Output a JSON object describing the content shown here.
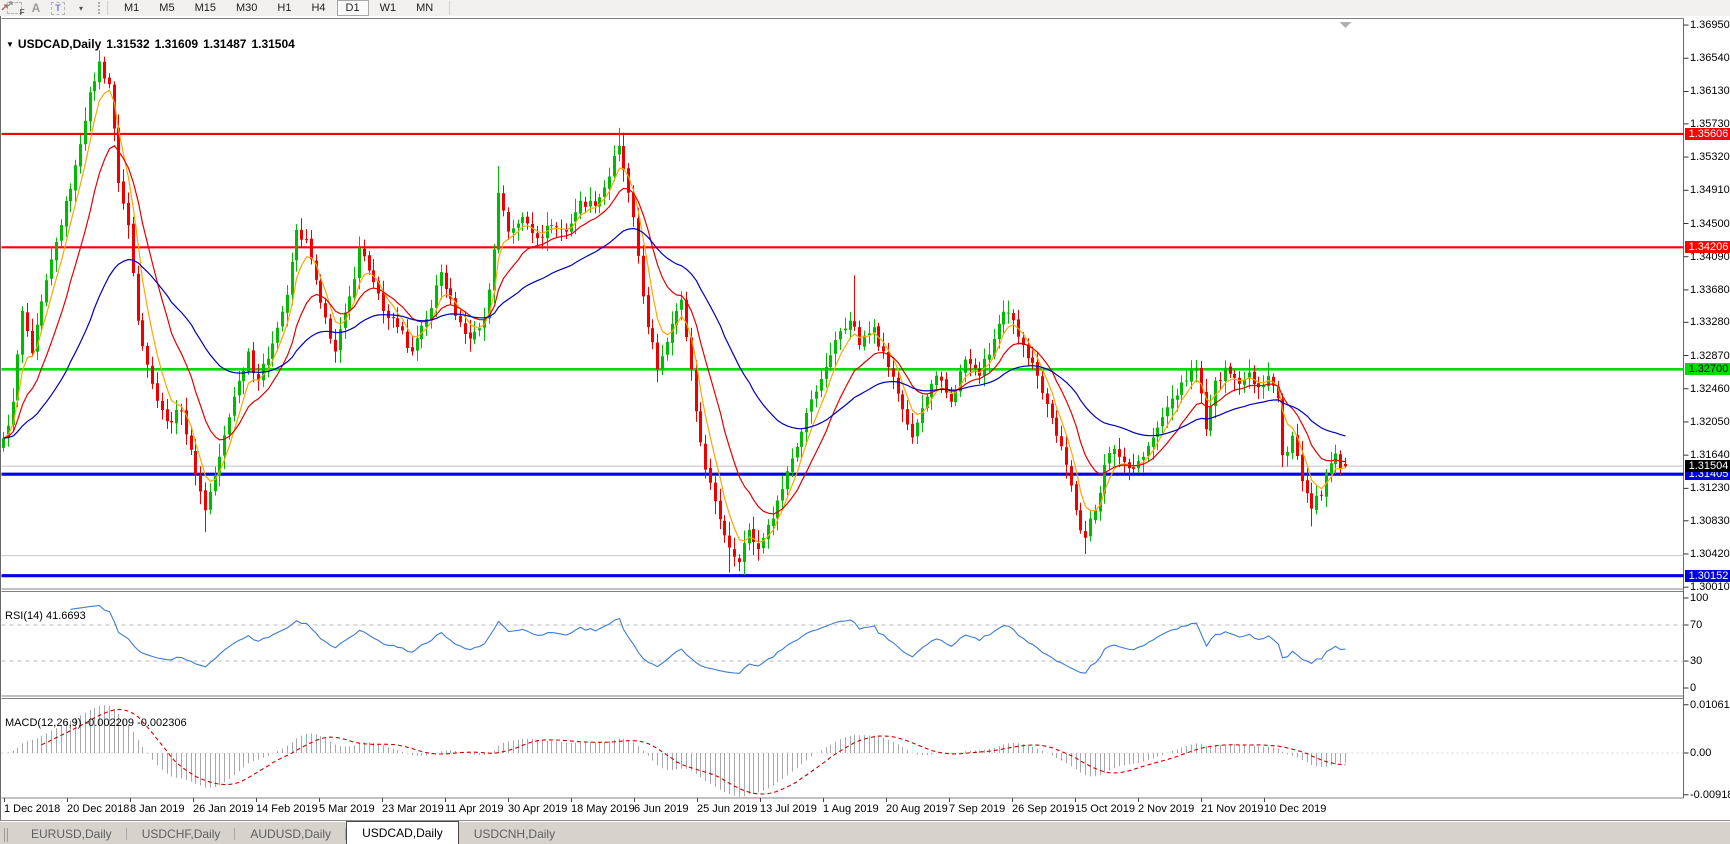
{
  "toolbar": {
    "tools": [
      {
        "name": "fibonacci-tool",
        "label": "F"
      },
      {
        "name": "text-label-tool",
        "label": "A"
      },
      {
        "name": "text-box-tool",
        "label": "T"
      },
      {
        "name": "arrows-tool",
        "label": "▾"
      }
    ],
    "timeframes": [
      "M1",
      "M5",
      "M15",
      "M30",
      "H1",
      "H4",
      "D1",
      "W1",
      "MN"
    ],
    "active_timeframe": "D1"
  },
  "title": {
    "symbol": "USDCAD,Daily",
    "open": "1.31532",
    "high": "1.31609",
    "low": "1.31487",
    "close": "1.31504"
  },
  "price_axis": {
    "min": 1.3,
    "max": 1.37,
    "ticks": [
      "1.36950",
      "1.36540",
      "1.36130",
      "1.35730",
      "1.35320",
      "1.34910",
      "1.34500",
      "1.34090",
      "1.33680",
      "1.33280",
      "1.32870",
      "1.32460",
      "1.32050",
      "1.31640",
      "1.31230",
      "1.30830",
      "1.30420",
      "1.30010"
    ]
  },
  "hlines": [
    {
      "name": "resistance-1",
      "price": 1.35606,
      "label": "1.35606",
      "color": "#ff0000",
      "width": 2.2,
      "label_bg": "#ff0000",
      "label_fg": "#ffffff"
    },
    {
      "name": "resistance-2",
      "price": 1.34206,
      "label": "1.34206",
      "color": "#ff0000",
      "width": 2.2,
      "label_bg": "#ff0000",
      "label_fg": "#ffffff"
    },
    {
      "name": "pivot-green",
      "price": 1.327,
      "label": "1.32700",
      "color": "#00dd00",
      "width": 2.6,
      "label_bg": "#00dd00",
      "label_fg": "#000000"
    },
    {
      "name": "support-1",
      "price": 1.31405,
      "label": "1.31405",
      "color": "#0000e0",
      "width": 3.2,
      "label_bg": "#0000e0",
      "label_fg": "#ffffff"
    },
    {
      "name": "support-2",
      "price": 1.30152,
      "label": "1.30152",
      "color": "#0000e0",
      "width": 3.2,
      "label_bg": "#0000e0",
      "label_fg": "#ffffff"
    },
    {
      "name": "gray-level",
      "price": 1.304,
      "label": "",
      "color": "#c8c8c8",
      "width": 1,
      "label_bg": "",
      "label_fg": ""
    }
  ],
  "bid_line": {
    "price": 1.31504,
    "label": "1.31504",
    "line_color": "#c0c0c0",
    "label_bg": "#000000",
    "label_fg": "#ffffff"
  },
  "chart_data": {
    "type": "candlestick",
    "symbol": "USDCAD",
    "period": "Daily",
    "n_candles": 280,
    "up_color": "#00bb00",
    "down_color": "#ee0000",
    "anchors_index_close": [
      [
        0,
        1.3185
      ],
      [
        2,
        1.323
      ],
      [
        4,
        1.3342
      ],
      [
        6,
        1.329
      ],
      [
        9,
        1.338
      ],
      [
        12,
        1.3448
      ],
      [
        15,
        1.3522
      ],
      [
        18,
        1.3612
      ],
      [
        20,
        1.365
      ],
      [
        22,
        1.3622
      ],
      [
        24,
        1.35
      ],
      [
        26,
        1.3448
      ],
      [
        28,
        1.333
      ],
      [
        31,
        1.3252
      ],
      [
        34,
        1.3206
      ],
      [
        37,
        1.3218
      ],
      [
        40,
        1.314
      ],
      [
        42,
        1.3096
      ],
      [
        45,
        1.3162
      ],
      [
        48,
        1.3236
      ],
      [
        51,
        1.3292
      ],
      [
        53,
        1.3256
      ],
      [
        56,
        1.3302
      ],
      [
        59,
        1.3362
      ],
      [
        61,
        1.3442
      ],
      [
        63,
        1.343
      ],
      [
        66,
        1.3352
      ],
      [
        69,
        1.3292
      ],
      [
        72,
        1.336
      ],
      [
        74,
        1.342
      ],
      [
        76,
        1.3392
      ],
      [
        79,
        1.3342
      ],
      [
        82,
        1.3322
      ],
      [
        85,
        1.3292
      ],
      [
        88,
        1.3332
      ],
      [
        91,
        1.339
      ],
      [
        94,
        1.3336
      ],
      [
        97,
        1.3308
      ],
      [
        100,
        1.3332
      ],
      [
        102,
        1.3418
      ],
      [
        103,
        1.3488
      ],
      [
        105,
        1.344
      ],
      [
        108,
        1.3458
      ],
      [
        111,
        1.3432
      ],
      [
        114,
        1.3448
      ],
      [
        117,
        1.344
      ],
      [
        120,
        1.3478
      ],
      [
        123,
        1.3472
      ],
      [
        126,
        1.3508
      ],
      [
        128,
        1.3546
      ],
      [
        130,
        1.3488
      ],
      [
        132,
        1.341
      ],
      [
        134,
        1.3322
      ],
      [
        136,
        1.327
      ],
      [
        139,
        1.3326
      ],
      [
        141,
        1.3356
      ],
      [
        143,
        1.327
      ],
      [
        145,
        1.318
      ],
      [
        147,
        1.313
      ],
      [
        149,
        1.3085
      ],
      [
        151,
        1.305
      ],
      [
        153,
        1.3032
      ],
      [
        155,
        1.3072
      ],
      [
        157,
        1.3048
      ],
      [
        159,
        1.3078
      ],
      [
        161,
        1.3108
      ],
      [
        164,
        1.316
      ],
      [
        167,
        1.3216
      ],
      [
        170,
        1.3258
      ],
      [
        173,
        1.3306
      ],
      [
        176,
        1.333
      ],
      [
        178,
        1.33
      ],
      [
        181,
        1.3322
      ],
      [
        183,
        1.3292
      ],
      [
        186,
        1.324
      ],
      [
        189,
        1.3186
      ],
      [
        191,
        1.3222
      ],
      [
        194,
        1.3262
      ],
      [
        197,
        1.323
      ],
      [
        200,
        1.3282
      ],
      [
        203,
        1.3262
      ],
      [
        205,
        1.3288
      ],
      [
        207,
        1.3326
      ],
      [
        209,
        1.334
      ],
      [
        212,
        1.33
      ],
      [
        215,
        1.3262
      ],
      [
        218,
        1.321
      ],
      [
        221,
        1.3152
      ],
      [
        223,
        1.3096
      ],
      [
        225,
        1.3062
      ],
      [
        227,
        1.3096
      ],
      [
        229,
        1.3152
      ],
      [
        231,
        1.3172
      ],
      [
        234,
        1.3148
      ],
      [
        237,
        1.3162
      ],
      [
        240,
        1.3198
      ],
      [
        243,
        1.3234
      ],
      [
        246,
        1.3256
      ],
      [
        248,
        1.3272
      ],
      [
        250,
        1.3196
      ],
      [
        252,
        1.3256
      ],
      [
        254,
        1.3272
      ],
      [
        257,
        1.3252
      ],
      [
        259,
        1.3266
      ],
      [
        261,
        1.3248
      ],
      [
        263,
        1.3262
      ],
      [
        265,
        1.3234
      ],
      [
        266,
        1.3164
      ],
      [
        268,
        1.3188
      ],
      [
        270,
        1.3132
      ],
      [
        272,
        1.3098
      ],
      [
        274,
        1.3114
      ],
      [
        276,
        1.3154
      ],
      [
        277,
        1.3166
      ],
      [
        278,
        1.3148
      ],
      [
        279,
        1.315
      ]
    ],
    "wick_events": [
      {
        "i": 20,
        "h": 1.3664
      },
      {
        "i": 21,
        "h": 1.3656
      },
      {
        "i": 103,
        "h": 1.3521
      },
      {
        "i": 128,
        "h": 1.3568
      },
      {
        "i": 177,
        "h": 1.3386
      },
      {
        "i": 42,
        "l": 1.3069
      },
      {
        "i": 151,
        "l": 1.3019
      },
      {
        "i": 154,
        "l": 1.3016
      },
      {
        "i": 225,
        "l": 1.3042
      },
      {
        "i": 272,
        "l": 1.3076
      }
    ],
    "last_candle": {
      "o": 1.31532,
      "h": 1.31609,
      "l": 1.31487,
      "c": 1.31504
    },
    "moving_averages": [
      {
        "name": "ma-fast",
        "period": 5,
        "color": "#ffa500"
      },
      {
        "name": "ma-mid",
        "period": 13,
        "color": "#e60000"
      },
      {
        "name": "ma-slow",
        "period": 40,
        "color": "#0000bb"
      }
    ]
  },
  "rsi": {
    "label": "RSI(14) 41.6693",
    "period": 14,
    "current": 41.6693,
    "line_color": "#3e7bd6",
    "levels": [
      70,
      30
    ],
    "ticks": [
      {
        "v": 100,
        "label": "100"
      },
      {
        "v": 70,
        "label": "70"
      },
      {
        "v": 30,
        "label": "30"
      },
      {
        "v": 0,
        "label": "0"
      }
    ]
  },
  "macd": {
    "label": "MACD(12,26,9) -0.002209 -0.002306",
    "fast": 12,
    "slow": 26,
    "signal": 9,
    "main_value": -0.002209,
    "signal_value": -0.002306,
    "hist_color": "#a8a8a8",
    "signal_color": "#d00000",
    "ticks": [
      {
        "v": 0.010615,
        "label": "0.010615"
      },
      {
        "v": 0,
        "label": "0.00"
      },
      {
        "v": -0.009181,
        "label": "-0.009181"
      }
    ],
    "range": {
      "max": 0.010615,
      "min": -0.009181
    }
  },
  "time_axis": {
    "labels": [
      "1 Dec 2018",
      "20 Dec 2018",
      "8 Jan 2019",
      "26 Jan 2019",
      "14 Feb 2019",
      "5 Mar 2019",
      "23 Mar 2019",
      "11 Apr 2019",
      "30 Apr 2019",
      "18 May 2019",
      "6 Jun 2019",
      "25 Jun 2019",
      "13 Jul 2019",
      "1 Aug 2019",
      "20 Aug 2019",
      "7 Sep 2019",
      "26 Sep 2019",
      "15 Oct 2019",
      "2 Nov 2019",
      "21 Nov 2019",
      "10 Dec 2019"
    ]
  },
  "tabs": [
    {
      "label": "EURUSD,Daily",
      "active": false
    },
    {
      "label": "USDCHF,Daily",
      "active": false
    },
    {
      "label": "AUDUSD,Daily",
      "active": false
    },
    {
      "label": "USDCAD,Daily",
      "active": true
    },
    {
      "label": "USDCNH,Daily",
      "active": false
    }
  ]
}
